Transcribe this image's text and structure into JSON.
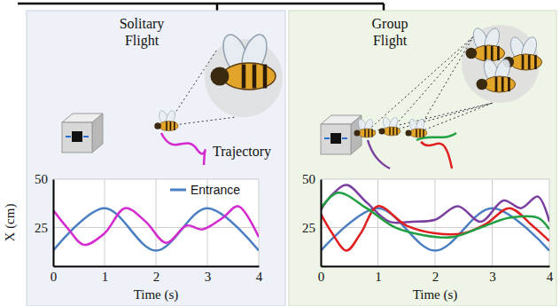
{
  "chart_data": [
    {
      "type": "line",
      "title": "Solitary Flight",
      "annotations": [
        "Trajectory"
      ],
      "x_label": "Time (s)",
      "y_label": "X (cm)",
      "xlim": [
        0,
        4
      ],
      "ylim": [
        5,
        50
      ],
      "xticks": [
        0,
        1,
        2,
        3,
        4
      ],
      "yticks": [
        25,
        50
      ],
      "grid": true,
      "legend": "upper right",
      "series": [
        {
          "name": "Entrance",
          "color": "#4a7ec2",
          "x": [
            0,
            1,
            2,
            3,
            4
          ],
          "values": [
            13,
            35,
            13,
            35,
            13
          ]
        },
        {
          "color": "#d42ad0",
          "x": [
            0,
            0.3,
            0.6,
            1.0,
            1.4,
            1.8,
            2.2,
            2.6,
            2.9,
            3.3,
            3.6,
            4.0
          ],
          "values": [
            34,
            24,
            16,
            22,
            35,
            28,
            17,
            26,
            24,
            30,
            36,
            20
          ]
        }
      ]
    },
    {
      "type": "line",
      "title": "Group Flight",
      "x_label": "Time (s)",
      "xlim": [
        0,
        4
      ],
      "ylim": [
        5,
        50
      ],
      "xticks": [
        0,
        1,
        2,
        3,
        4
      ],
      "yticks": [
        25,
        50
      ],
      "grid": true,
      "series": [
        {
          "color": "#4a7ec2",
          "x": [
            0,
            1,
            2,
            3,
            4
          ],
          "values": [
            13,
            35,
            13,
            35,
            13
          ]
        },
        {
          "color": "#7b3fa0",
          "x": [
            0,
            0.2,
            0.45,
            0.8,
            1.2,
            1.6,
            2.0,
            2.4,
            2.8,
            3.2,
            3.5,
            3.8,
            4.0
          ],
          "values": [
            34,
            42,
            47,
            38,
            28,
            28,
            29,
            36,
            28,
            39,
            35,
            41,
            28
          ]
        },
        {
          "color": "#e02020",
          "x": [
            0,
            0.2,
            0.45,
            0.7,
            1.0,
            1.5,
            2.0,
            2.5,
            2.9,
            3.3,
            3.7,
            4.0
          ],
          "values": [
            32,
            22,
            13,
            22,
            36,
            26,
            22,
            22,
            27,
            35,
            26,
            18
          ]
        },
        {
          "color": "#20a040",
          "x": [
            0,
            0.3,
            0.8,
            1.3,
            1.8,
            2.3,
            2.8,
            3.3,
            3.8,
            4.0
          ],
          "values": [
            35,
            43,
            35,
            25,
            21,
            20,
            25,
            30,
            30,
            24
          ]
        }
      ]
    }
  ]
}
